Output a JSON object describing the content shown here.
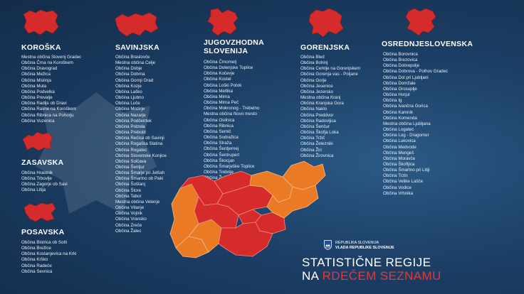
{
  "colors": {
    "red": "#d62b2b",
    "orange": "#ea7b24",
    "background": "#1c3f66",
    "headline_accent": "#e03a3a"
  },
  "regions": {
    "koroska": {
      "name": "KOROŠKA",
      "municipalities": [
        "Mestna občina Slovenj Gradec",
        "Občina Črna na Koroškem",
        "Občina Dravograd",
        "Občina Mežica",
        "Občina Mislinja",
        "Občina Muta",
        "Občina Podvelka",
        "Občina Prevalje",
        "Občina Radlje ob Dravi",
        "Občina Ravne na Koroškem",
        "Občina Ribnica na Pohorju",
        "Občina Vuzenica"
      ]
    },
    "zasavska": {
      "name": "ZASAVSKA",
      "municipalities": [
        "Občina Hrastnik",
        "Občina Trbovlje",
        "Občina Zagorje ob Savi",
        "Občina Litija"
      ]
    },
    "posavska": {
      "name": "POSAVSKA",
      "municipalities": [
        "Občina Bistrica ob Sotli",
        "Občina Brežice",
        "Občina Kostanjevica na Krki",
        "Občina Krško",
        "Občina Radeče",
        "Občina Sevnica"
      ]
    },
    "savinjska": {
      "name": "SAVINJSKA",
      "municipalities": [
        "Občina Braslovče",
        "Mestna občina Celje",
        "Občina Dobje",
        "Občina Dobrna",
        "Občina Gornji Grad",
        "Občina Kozje",
        "Občina Laško",
        "Občina Ljubno",
        "Občina Luče",
        "Občina Mozirje",
        "Občina Nazarje",
        "Občina Podčetrtek",
        "Občina Polzela",
        "Občina Prebold",
        "Občina Rečica ob Savinji",
        "Občina Rogaška Slatina",
        "Občina Rogatec",
        "Občina Slovenske Konjice",
        "Občina Solčava",
        "Občina Šentjur",
        "Občina Šmarje pri Jelšah",
        "Občina Šmartno ob Paki",
        "Občina Šoštanj",
        "Občina Štore",
        "Občina Tabor",
        "Mestna občina Velenje",
        "Občina Vitanje",
        "Občina Vojnik",
        "Občina Vransko",
        "Občina Zreče",
        "Občina Žalec"
      ]
    },
    "jugovzhodna": {
      "name_line1": "JUGOVZHODNA",
      "name_line2": "SLOVENIJA",
      "municipalities": [
        "Občina Črnomelj",
        "Občina Dolenjske Toplice",
        "Občina Kočevje",
        "Občina Kostel",
        "Občina Loški Potok",
        "Občina Metlika",
        "Občina Mirna",
        "Občina Mirna Peč",
        "Občina Mokronog - Trebelno",
        "Mestna občina Novo mesto",
        "Občina Osilnica",
        "Občina Ribnica",
        "Občina Semič",
        "Občina Sodražica",
        "Občina Straža",
        "Občina Šentjernej",
        "Občina Šentrupert",
        "Občina Škocjan",
        "Občina Šmarješke Toplice",
        "Občina Trebnje",
        "Občina Žužemberk"
      ]
    },
    "gorenjska": {
      "name": "GORENJSKA",
      "municipalities": [
        "Občina Bled",
        "Občina Bohinj",
        "Občina Cerklje na Gorenjskem",
        "Občina Gorenja vas - Poljane",
        "Občina Gorje",
        "Občina Jesenice",
        "Občina Jezersko",
        "Mestna občina Kranj",
        "Občina Kranjska Gora",
        "Občina Naklo",
        "Občina Preddvor",
        "Občina Radovljica",
        "Občina Šenčur",
        "Občina Škofja Loka",
        "Občina Tržič",
        "Občina Železniki",
        "Občina Žiri",
        "Občina Žirovnica"
      ]
    },
    "osrednjeslovenska": {
      "name": "OSREDNJESLOVENSKA",
      "municipalities": [
        "Občina Borovnica",
        "Občina Brezovica",
        "Občina Dobrepolje",
        "Občina Dobrova - Polhov Gradec",
        "Občina Dol pri Ljubljani",
        "Občina Domžale",
        "Občina Grosuplje",
        "Občina Horjul",
        "Občina Ig",
        "Občina Ivančna Gorica",
        "Občina Kamnik",
        "Občina Komenda",
        "Mestna občina Ljubljana",
        "Občina Logatec",
        "Občina Log - Dragomer",
        "Občina Lukovica",
        "Občina Medvode",
        "Občina Mengeš",
        "Občina Moravče",
        "Občina Škofljica",
        "Občina Šmartno pri Litiji",
        "Občina Trzin",
        "Občina Velike Lašče",
        "Občina Vodice",
        "Občina Vrhnika"
      ]
    }
  },
  "government": {
    "line1": "REPUBLIKA SLOVENIJA",
    "line2": "VLADA REPUBLIKE SLOVENIJE"
  },
  "headline": {
    "line1": "STATISTIČNE REGIJE",
    "line2_prefix": "NA ",
    "line2_accent": "RDEČEM SEZNAMU"
  }
}
